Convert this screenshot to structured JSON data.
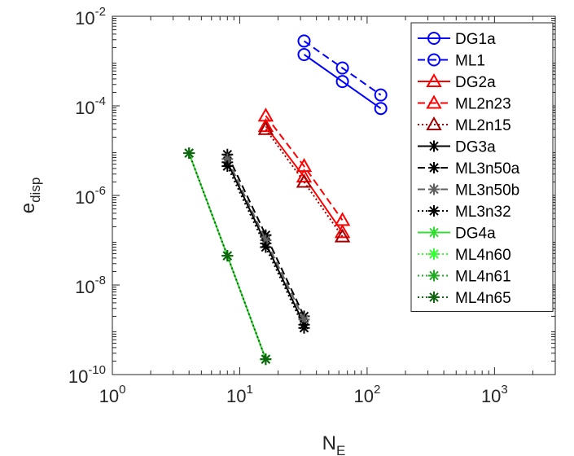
{
  "chart_data": {
    "type": "line",
    "xscale": "log",
    "yscale": "log",
    "xlim": [
      1,
      3000
    ],
    "ylim": [
      1e-10,
      0.01
    ],
    "xlabel": {
      "base": "N",
      "sub": "E"
    },
    "ylabel": {
      "base": "e",
      "sub": "disp"
    },
    "x_ticks": [
      {
        "base": "10",
        "exp": "0",
        "value": 1
      },
      {
        "base": "10",
        "exp": "1",
        "value": 10
      },
      {
        "base": "10",
        "exp": "2",
        "value": 100
      },
      {
        "base": "10",
        "exp": "3",
        "value": 1000
      }
    ],
    "y_ticks": [
      {
        "base": "10",
        "exp": "-2",
        "value": 0.01
      },
      {
        "base": "10",
        "exp": "-4",
        "value": 0.0001
      },
      {
        "base": "10",
        "exp": "-6",
        "value": 1e-06
      },
      {
        "base": "10",
        "exp": "-8",
        "value": 1e-08
      },
      {
        "base": "10",
        "exp": "-10",
        "value": 1e-10
      }
    ],
    "grid": false,
    "legend_position": "top-right",
    "series": [
      {
        "name": "DG1a",
        "color": "#0000ff",
        "dash": "solid",
        "marker": "circle",
        "x": [
          32,
          64,
          128
        ],
        "y": [
          0.0014,
          0.00035,
          8.75e-05
        ]
      },
      {
        "name": "ML1",
        "color": "#0000ff",
        "dash": "dashed",
        "marker": "circle",
        "x": [
          32,
          64,
          128
        ],
        "y": [
          0.0028,
          0.0007,
          0.000175
        ]
      },
      {
        "name": "DG2a",
        "color": "#ff0000",
        "dash": "solid",
        "marker": "triangle",
        "x": [
          16,
          32,
          64
        ],
        "y": [
          3.5e-05,
          2.6e-06,
          1.5e-07
        ]
      },
      {
        "name": "ML2n23",
        "color": "#ff0000",
        "dash": "dashed",
        "marker": "triangle",
        "x": [
          16,
          32,
          64
        ],
        "y": [
          6e-05,
          4.5e-06,
          2.8e-07
        ]
      },
      {
        "name": "ML2n15",
        "color": "#a00000",
        "dash": "dotted",
        "marker": "triangle",
        "x": [
          16,
          32,
          64
        ],
        "y": [
          3e-05,
          2e-06,
          1.2e-07
        ]
      },
      {
        "name": "DG3a",
        "color": "#000000",
        "dash": "solid",
        "marker": "asterisk",
        "x": [
          8,
          16,
          32
        ],
        "y": [
          5.5e-06,
          8.5e-08,
          1.3e-09
        ]
      },
      {
        "name": "ML3n50a",
        "color": "#000000",
        "dash": "dashed",
        "marker": "asterisk",
        "x": [
          8,
          16,
          32
        ],
        "y": [
          8.2e-06,
          1.3e-07,
          2e-09
        ]
      },
      {
        "name": "ML3n50b",
        "color": "#606060",
        "dash": "dashed",
        "marker": "asterisk",
        "x": [
          8,
          16,
          32
        ],
        "y": [
          6.5e-06,
          1e-07,
          1.7e-09
        ]
      },
      {
        "name": "ML3n32",
        "color": "#000000",
        "dash": "dotted",
        "marker": "asterisk",
        "x": [
          8,
          16,
          32
        ],
        "y": [
          4.5e-06,
          7e-08,
          1.1e-09
        ]
      },
      {
        "name": "DG4a",
        "color": "#33dd33",
        "dash": "solid",
        "marker": "asterisk",
        "x": [
          4,
          8,
          16
        ],
        "y": [
          8.8e-06,
          4.5e-08,
          2.2e-10
        ]
      },
      {
        "name": "ML4n60",
        "color": "#33ff33",
        "dash": "dotted",
        "marker": "asterisk",
        "x": [
          4,
          8,
          16
        ],
        "y": [
          8.8e-06,
          4.5e-08,
          2.2e-10
        ]
      },
      {
        "name": "ML4n61",
        "color": "#22aa22",
        "dash": "dotted",
        "marker": "asterisk",
        "x": [
          4,
          8,
          16
        ],
        "y": [
          8.8e-06,
          4.5e-08,
          2.2e-10
        ]
      },
      {
        "name": "ML4n65",
        "color": "#116611",
        "dash": "dotted",
        "marker": "asterisk",
        "x": [
          4,
          8,
          16
        ],
        "y": [
          8.8e-06,
          4.5e-08,
          2.2e-10
        ]
      }
    ]
  }
}
